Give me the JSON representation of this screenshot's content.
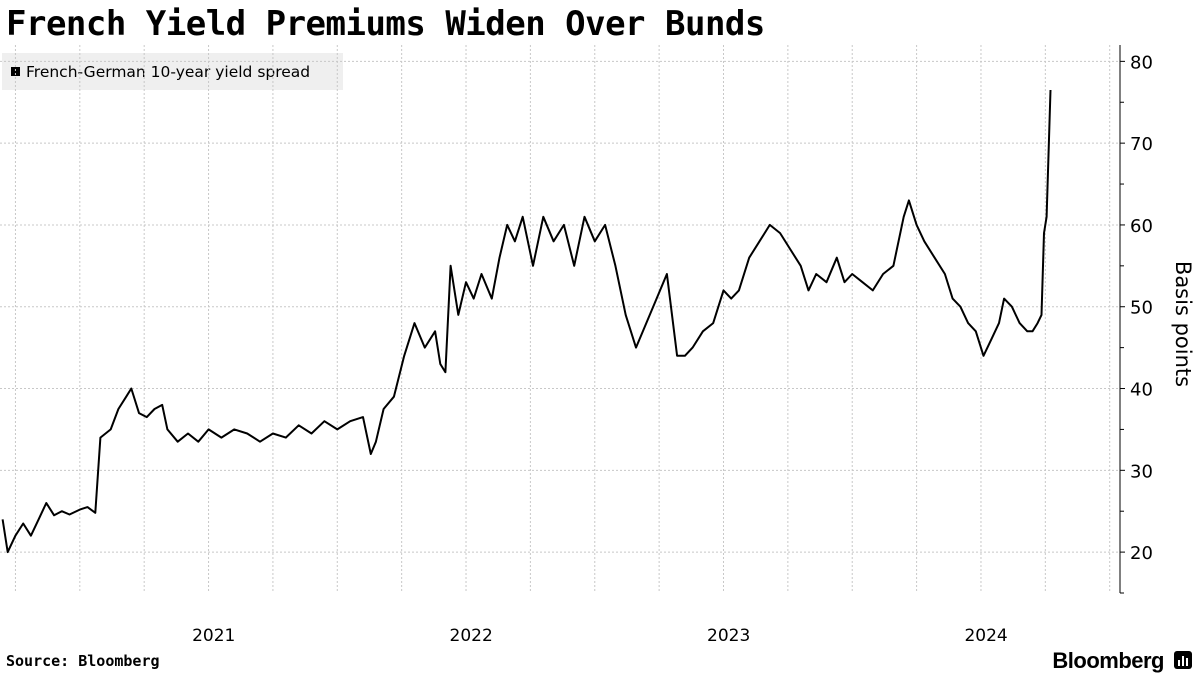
{
  "header": {
    "title": "French Yield Premiums Widen Over Bunds"
  },
  "legend": {
    "label": "French-German 10-year yield spread"
  },
  "footer": {
    "source": "Source: Bloomberg",
    "brand": "Bloomberg"
  },
  "chart_data": {
    "type": "line",
    "title": "French Yield Premiums Widen Over Bunds",
    "ylabel": "Basis points",
    "xlabel": "",
    "ylim": [
      15,
      82
    ],
    "yticks": [
      20,
      30,
      40,
      50,
      60,
      70,
      80
    ],
    "grid": true,
    "legend_position": "top-left",
    "x_tick_labels": [
      "2021",
      "2022",
      "2023",
      "2024"
    ],
    "x_unit": "year",
    "series_color": "#000000",
    "series": [
      {
        "name": "French-German 10-year yield spread",
        "points": [
          [
            2020.2,
            24
          ],
          [
            2020.22,
            20
          ],
          [
            2020.25,
            22
          ],
          [
            2020.28,
            23.5
          ],
          [
            2020.31,
            22
          ],
          [
            2020.34,
            24
          ],
          [
            2020.37,
            26
          ],
          [
            2020.4,
            24.5
          ],
          [
            2020.43,
            25
          ],
          [
            2020.46,
            24.6
          ],
          [
            2020.5,
            25.2
          ],
          [
            2020.53,
            25.5
          ],
          [
            2020.56,
            24.8
          ],
          [
            2020.58,
            34
          ],
          [
            2020.62,
            35
          ],
          [
            2020.65,
            37.5
          ],
          [
            2020.68,
            39
          ],
          [
            2020.7,
            40
          ],
          [
            2020.73,
            37
          ],
          [
            2020.76,
            36.5
          ],
          [
            2020.79,
            37.5
          ],
          [
            2020.82,
            38
          ],
          [
            2020.84,
            35
          ],
          [
            2020.88,
            33.5
          ],
          [
            2020.92,
            34.5
          ],
          [
            2020.96,
            33.5
          ],
          [
            2021.0,
            35
          ],
          [
            2021.05,
            34
          ],
          [
            2021.1,
            35
          ],
          [
            2021.15,
            34.5
          ],
          [
            2021.2,
            33.5
          ],
          [
            2021.25,
            34.5
          ],
          [
            2021.3,
            34
          ],
          [
            2021.35,
            35.5
          ],
          [
            2021.4,
            34.5
          ],
          [
            2021.45,
            36
          ],
          [
            2021.5,
            35
          ],
          [
            2021.55,
            36
          ],
          [
            2021.6,
            36.5
          ],
          [
            2021.63,
            32
          ],
          [
            2021.65,
            33.5
          ],
          [
            2021.68,
            37.5
          ],
          [
            2021.72,
            39
          ],
          [
            2021.76,
            44
          ],
          [
            2021.8,
            48
          ],
          [
            2021.84,
            45
          ],
          [
            2021.88,
            47
          ],
          [
            2021.9,
            43
          ],
          [
            2021.92,
            42
          ],
          [
            2021.94,
            55
          ],
          [
            2021.97,
            49
          ],
          [
            2022.0,
            53
          ],
          [
            2022.03,
            51
          ],
          [
            2022.06,
            54
          ],
          [
            2022.1,
            51
          ],
          [
            2022.13,
            56
          ],
          [
            2022.16,
            60
          ],
          [
            2022.19,
            58
          ],
          [
            2022.22,
            61
          ],
          [
            2022.26,
            55
          ],
          [
            2022.3,
            61
          ],
          [
            2022.34,
            58
          ],
          [
            2022.38,
            60
          ],
          [
            2022.42,
            55
          ],
          [
            2022.46,
            61
          ],
          [
            2022.5,
            58
          ],
          [
            2022.54,
            60
          ],
          [
            2022.58,
            55
          ],
          [
            2022.62,
            49
          ],
          [
            2022.66,
            45
          ],
          [
            2022.7,
            48
          ],
          [
            2022.74,
            51
          ],
          [
            2022.78,
            54
          ],
          [
            2022.82,
            44
          ],
          [
            2022.85,
            44
          ],
          [
            2022.88,
            45
          ],
          [
            2022.92,
            47
          ],
          [
            2022.96,
            48
          ],
          [
            2023.0,
            52
          ],
          [
            2023.03,
            51
          ],
          [
            2023.06,
            52
          ],
          [
            2023.1,
            56
          ],
          [
            2023.14,
            58
          ],
          [
            2023.18,
            60
          ],
          [
            2023.22,
            59
          ],
          [
            2023.26,
            57
          ],
          [
            2023.3,
            55
          ],
          [
            2023.33,
            52
          ],
          [
            2023.36,
            54
          ],
          [
            2023.4,
            53
          ],
          [
            2023.44,
            56
          ],
          [
            2023.47,
            53
          ],
          [
            2023.5,
            54
          ],
          [
            2023.54,
            53
          ],
          [
            2023.58,
            52
          ],
          [
            2023.62,
            54
          ],
          [
            2023.66,
            55
          ],
          [
            2023.7,
            61
          ],
          [
            2023.72,
            63
          ],
          [
            2023.75,
            60
          ],
          [
            2023.78,
            58
          ],
          [
            2023.82,
            56
          ],
          [
            2023.86,
            54
          ],
          [
            2023.89,
            51
          ],
          [
            2023.92,
            50
          ],
          [
            2023.95,
            48
          ],
          [
            2023.98,
            47
          ],
          [
            2024.01,
            44
          ],
          [
            2024.04,
            46
          ],
          [
            2024.07,
            48
          ],
          [
            2024.09,
            51
          ],
          [
            2024.12,
            50
          ],
          [
            2024.15,
            48
          ],
          [
            2024.18,
            47
          ],
          [
            2024.2,
            47
          ],
          [
            2024.22,
            48
          ],
          [
            2024.235,
            49
          ],
          [
            2024.245,
            59
          ],
          [
            2024.255,
            61
          ],
          [
            2024.27,
            76.5
          ]
        ]
      }
    ]
  }
}
